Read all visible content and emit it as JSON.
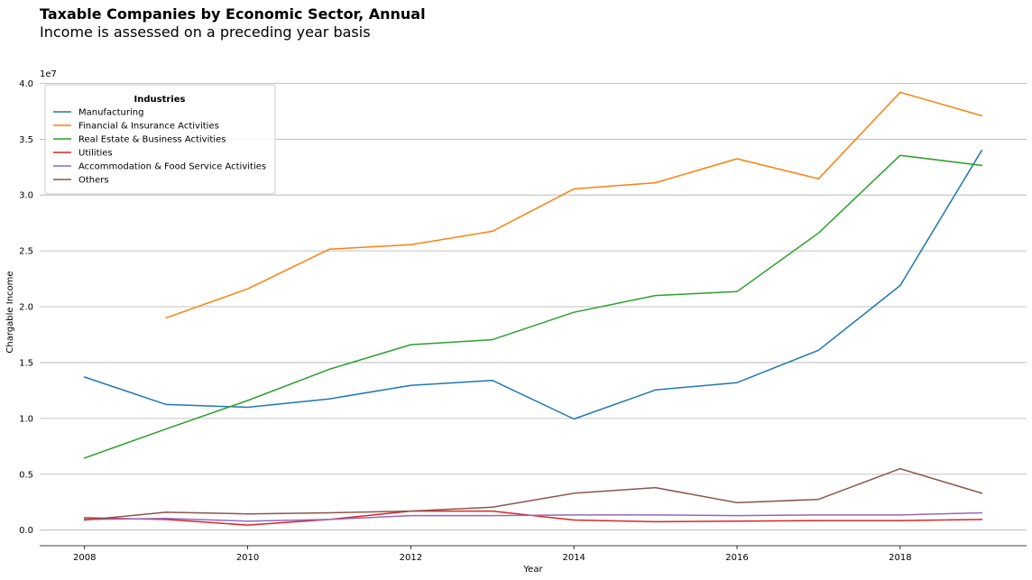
{
  "chart_data": {
    "type": "line",
    "title": "Taxable Companies by Economic Sector,  Annual",
    "subtitle": "Income is assessed on a preceding year basis",
    "xlabel": "Year",
    "ylabel": "Chargable Income",
    "y_offset_label": "1e7",
    "xlim": [
      2007.45,
      2019.55
    ],
    "ylim": [
      -1400000,
      41000000
    ],
    "x_ticks": [
      2008,
      2010,
      2012,
      2014,
      2016,
      2018
    ],
    "y_ticks": [
      0,
      5000000,
      10000000,
      15000000,
      20000000,
      25000000,
      30000000,
      35000000,
      40000000
    ],
    "y_tick_labels": [
      "0.0",
      "0.5",
      "1.0",
      "1.5",
      "2.0",
      "2.5",
      "3.0",
      "3.5",
      "4.0"
    ],
    "grid": "horizontal",
    "legend": {
      "title": "Industries",
      "placement": "top-left"
    },
    "x": [
      2008,
      2009,
      2010,
      2011,
      2012,
      2013,
      2014,
      2015,
      2016,
      2017,
      2018,
      2019
    ],
    "series": [
      {
        "name": "Manufacturing",
        "color": "#1f77b4",
        "values": [
          13700000,
          11250000,
          11000000,
          11750000,
          12950000,
          13400000,
          9950000,
          12550000,
          13200000,
          16100000,
          21900000,
          34000000
        ]
      },
      {
        "name": "Financial & Insurance Activities",
        "color": "#ff7f0e",
        "values": [
          null,
          19000000,
          21600000,
          25150000,
          25550000,
          26750000,
          30550000,
          31100000,
          33250000,
          31450000,
          39200000,
          37100000
        ]
      },
      {
        "name": "Real Estate & Business Activities",
        "color": "#2ca02c",
        "values": [
          6450000,
          9050000,
          11600000,
          14400000,
          16600000,
          17050000,
          19500000,
          21000000,
          21350000,
          26600000,
          33550000,
          32650000
        ]
      },
      {
        "name": "Utilities",
        "color": "#d62728",
        "values": [
          1100000,
          950000,
          450000,
          950000,
          1700000,
          1700000,
          900000,
          750000,
          800000,
          850000,
          850000,
          950000
        ]
      },
      {
        "name": "Accommodation & Food Service Activities",
        "color": "#9467bd",
        "values": [
          950000,
          1050000,
          800000,
          950000,
          1300000,
          1300000,
          1350000,
          1350000,
          1300000,
          1350000,
          1350000,
          1550000
        ]
      },
      {
        "name": "Others",
        "color": "#8c564b",
        "values": [
          900000,
          1600000,
          1450000,
          1550000,
          1700000,
          2050000,
          3300000,
          3800000,
          2450000,
          2750000,
          5500000,
          3300000
        ]
      }
    ]
  }
}
